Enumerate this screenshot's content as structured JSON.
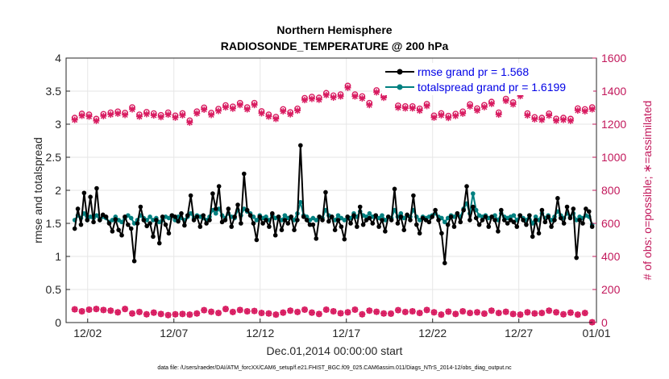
{
  "chart_data": {
    "type": "line",
    "title": "Northern Hemisphere",
    "subtitle": "RADIOSONDE_TEMPERATURE @ 200 hPa",
    "xlabel": "Dec.01,2014 00:00:00 start",
    "ylabel": "rmse and totalspread",
    "ylabel_right": "# of obs: o=possible; ∗=assimilated",
    "footnote": "data file: /Users/raeder/DAI/ATM_forcXX/CAM6_setup/f.e21.FHIST_BGC.f09_025.CAM6assim.011/Diags_NTrS_2014-12/obs_diag_output.nc",
    "xlim": [
      0.5,
      31.25
    ],
    "ylim": [
      0,
      4
    ],
    "ylim_right": [
      0,
      1600
    ],
    "x_ticks": [
      1.75,
      6.75,
      11.75,
      16.75,
      21.75,
      26.75,
      31.75
    ],
    "x_tick_labels": [
      "12/02",
      "12/07",
      "12/12",
      "12/17",
      "12/22",
      "12/27",
      "01/01"
    ],
    "y_ticks": [
      "0",
      "0.5",
      "1",
      "1.5",
      "2",
      "2.5",
      "3",
      "3.5",
      "4"
    ],
    "y_ticks_right": [
      "0",
      "200",
      "400",
      "600",
      "800",
      "1000",
      "1200",
      "1400",
      "1600"
    ],
    "grid": true,
    "legend_position": "top-right",
    "colors": {
      "rmse": "#000000",
      "spread": "#008080",
      "obs": "#d81b60",
      "legend_text": "#0000e6"
    },
    "series": [
      {
        "name": "rmse grand pr = 1.568",
        "axis": "left",
        "marker": "dot",
        "color": "#000000",
        "values": [
          1.42,
          1.72,
          1.48,
          1.96,
          1.55,
          1.9,
          1.52,
          2.03,
          1.55,
          1.63,
          1.6,
          1.5,
          1.38,
          1.56,
          1.4,
          1.32,
          1.6,
          1.48,
          1.42,
          0.93,
          1.5,
          1.75,
          1.55,
          1.46,
          1.5,
          1.3,
          1.55,
          1.2,
          1.6,
          1.48,
          1.35,
          1.62,
          1.6,
          1.53,
          1.65,
          1.47,
          1.62,
          1.92,
          1.55,
          1.6,
          1.45,
          1.62,
          1.5,
          1.55,
          1.95,
          1.72,
          2.06,
          1.52,
          1.55,
          1.72,
          1.45,
          1.6,
          1.78,
          1.5,
          2.25,
          1.7,
          1.62,
          1.5,
          1.25,
          1.6,
          1.5,
          1.55,
          1.45,
          1.65,
          1.32,
          1.6,
          1.4,
          1.55,
          1.5,
          1.6,
          1.4,
          1.55,
          2.68,
          1.6,
          1.55,
          1.48,
          1.48,
          1.27,
          1.6,
          1.55,
          1.97,
          1.53,
          1.6,
          1.4,
          1.55,
          1.45,
          1.26,
          1.6,
          1.5,
          1.62,
          1.45,
          1.75,
          1.48,
          1.55,
          1.58,
          1.5,
          1.62,
          1.45,
          1.55,
          1.38,
          1.6,
          1.55,
          2.02,
          1.5,
          1.6,
          1.4,
          1.63,
          1.55,
          1.92,
          1.48,
          1.35,
          1.58,
          1.55,
          1.52,
          1.6,
          1.7,
          1.55,
          1.35,
          0.9,
          1.48,
          1.6,
          1.45,
          1.65,
          1.52,
          1.7,
          2.06,
          1.55,
          1.75,
          1.58,
          1.48,
          1.55,
          1.6,
          1.45,
          1.6,
          1.55,
          1.38,
          1.7,
          1.55,
          1.5,
          1.55,
          1.52,
          1.45,
          1.62,
          1.55,
          1.48,
          1.62,
          1.3,
          1.55,
          1.35,
          1.7,
          1.52,
          1.6,
          1.45,
          1.55,
          1.88,
          1.58,
          1.5,
          1.75,
          1.58,
          1.72,
          0.98,
          1.55,
          1.5,
          1.72,
          1.68,
          1.45
        ]
      },
      {
        "name": "totalspread grand pr = 1.6199",
        "axis": "left",
        "marker": "dot",
        "color": "#008080",
        "values": [
          1.55,
          1.62,
          1.58,
          1.65,
          1.55,
          1.6,
          1.58,
          1.62,
          1.55,
          1.6,
          1.58,
          1.52,
          1.55,
          1.6,
          1.55,
          1.52,
          1.58,
          1.62,
          1.58,
          1.5,
          1.55,
          1.62,
          1.58,
          1.55,
          1.6,
          1.55,
          1.58,
          1.52,
          1.55,
          1.6,
          1.58,
          1.62,
          1.55,
          1.6,
          1.58,
          1.55,
          1.6,
          1.65,
          1.58,
          1.62,
          1.6,
          1.58,
          1.55,
          1.6,
          1.7,
          1.65,
          1.72,
          1.62,
          1.58,
          1.65,
          1.6,
          1.58,
          1.7,
          1.62,
          1.72,
          1.68,
          1.65,
          1.6,
          1.55,
          1.62,
          1.58,
          1.6,
          1.55,
          1.62,
          1.58,
          1.6,
          1.55,
          1.62,
          1.58,
          1.6,
          1.55,
          1.65,
          1.82,
          1.62,
          1.6,
          1.55,
          1.58,
          1.55,
          1.6,
          1.58,
          1.7,
          1.62,
          1.6,
          1.55,
          1.62,
          1.58,
          1.55,
          1.6,
          1.58,
          1.65,
          1.6,
          1.68,
          1.62,
          1.6,
          1.65,
          1.6,
          1.62,
          1.58,
          1.62,
          1.55,
          1.6,
          1.58,
          1.7,
          1.6,
          1.65,
          1.58,
          1.62,
          1.6,
          1.7,
          1.6,
          1.55,
          1.6,
          1.58,
          1.6,
          1.62,
          1.65,
          1.6,
          1.58,
          1.52,
          1.58,
          1.62,
          1.6,
          1.65,
          1.6,
          1.72,
          1.8,
          1.65,
          1.95,
          1.7,
          1.62,
          1.6,
          1.62,
          1.58,
          1.6,
          1.62,
          1.55,
          1.65,
          1.6,
          1.58,
          1.6,
          1.62,
          1.55,
          1.62,
          1.58,
          1.55,
          1.62,
          1.5,
          1.6,
          1.55,
          1.65,
          1.58,
          1.62,
          1.55,
          1.6,
          1.68,
          1.62,
          1.58,
          1.65,
          1.6,
          1.65,
          1.55,
          1.6,
          1.58,
          1.62,
          1.6,
          1.48
        ]
      },
      {
        "name": "possible obs (upper)",
        "axis": "right",
        "marker": "o",
        "color": "#d81b60",
        "values": [
          1238,
          1263,
          1258,
          1232,
          1261,
          1270,
          1276,
          1268,
          1302,
          1258,
          1273,
          1265,
          1255,
          1270,
          1252,
          1266,
          1222,
          1277,
          1300,
          1268,
          1292,
          1314,
          1306,
          1328,
          1302,
          1328,
          1278,
          1258,
          1244,
          1290,
          1272,
          1294,
          1358,
          1365,
          1360,
          1388,
          1373,
          1380,
          1432,
          1380,
          1368,
          1328,
          1405,
          1372,
          1410,
          1312,
          1308,
          1308,
          1294,
          1322,
          1252,
          1266,
          1250,
          1262,
          1276,
          1320,
          1295,
          1315,
          1335,
          1270,
          1353,
          1332,
          1382,
          1265,
          1242,
          1238,
          1264,
          1233,
          1238,
          1232,
          1295,
          1290,
          1302
        ]
      },
      {
        "name": "assimilated obs (upper)",
        "axis": "right",
        "marker": "*",
        "color": "#d81b60",
        "values": [
          1226,
          1251,
          1246,
          1220,
          1249,
          1258,
          1264,
          1256,
          1290,
          1246,
          1261,
          1253,
          1243,
          1258,
          1240,
          1254,
          1210,
          1265,
          1288,
          1256,
          1280,
          1302,
          1294,
          1316,
          1290,
          1316,
          1266,
          1246,
          1232,
          1278,
          1260,
          1282,
          1346,
          1353,
          1348,
          1376,
          1361,
          1368,
          1420,
          1368,
          1356,
          1316,
          1393,
          1360,
          1398,
          1300,
          1296,
          1296,
          1282,
          1310,
          1240,
          1254,
          1238,
          1250,
          1264,
          1308,
          1283,
          1303,
          1323,
          1258,
          1341,
          1320,
          1370,
          1253,
          1230,
          1226,
          1252,
          1221,
          1226,
          1220,
          1283,
          1278,
          1290
        ]
      },
      {
        "name": "possible obs (lower)",
        "axis": "right",
        "marker": "o",
        "color": "#d81b60",
        "values": [
          80,
          68,
          78,
          82,
          76,
          72,
          62,
          82,
          55,
          64,
          50,
          60,
          52,
          45,
          50,
          52,
          48,
          55,
          75,
          65,
          58,
          82,
          64,
          76,
          68,
          70,
          58,
          55,
          48,
          60,
          72,
          64,
          78,
          60,
          52,
          78,
          68,
          56,
          62,
          78,
          50,
          72,
          65,
          55,
          54,
          75,
          64,
          68,
          58,
          76,
          62,
          48,
          66,
          52,
          68,
          58,
          62,
          54,
          72,
          58,
          65,
          52,
          48,
          62,
          55,
          58,
          72,
          62,
          50,
          60,
          48,
          58,
          2
        ]
      },
      {
        "name": "assimilated obs (lower)",
        "axis": "right",
        "marker": "*",
        "color": "#d81b60",
        "values": [
          80,
          68,
          78,
          82,
          76,
          72,
          62,
          82,
          55,
          64,
          50,
          60,
          52,
          45,
          50,
          52,
          48,
          55,
          75,
          65,
          58,
          82,
          64,
          76,
          68,
          70,
          58,
          55,
          48,
          60,
          72,
          64,
          78,
          60,
          52,
          78,
          68,
          56,
          62,
          78,
          50,
          72,
          65,
          55,
          54,
          75,
          64,
          68,
          58,
          76,
          62,
          48,
          66,
          52,
          68,
          58,
          62,
          54,
          72,
          58,
          65,
          52,
          48,
          62,
          55,
          58,
          72,
          62,
          50,
          60,
          48,
          58,
          2
        ]
      }
    ]
  }
}
